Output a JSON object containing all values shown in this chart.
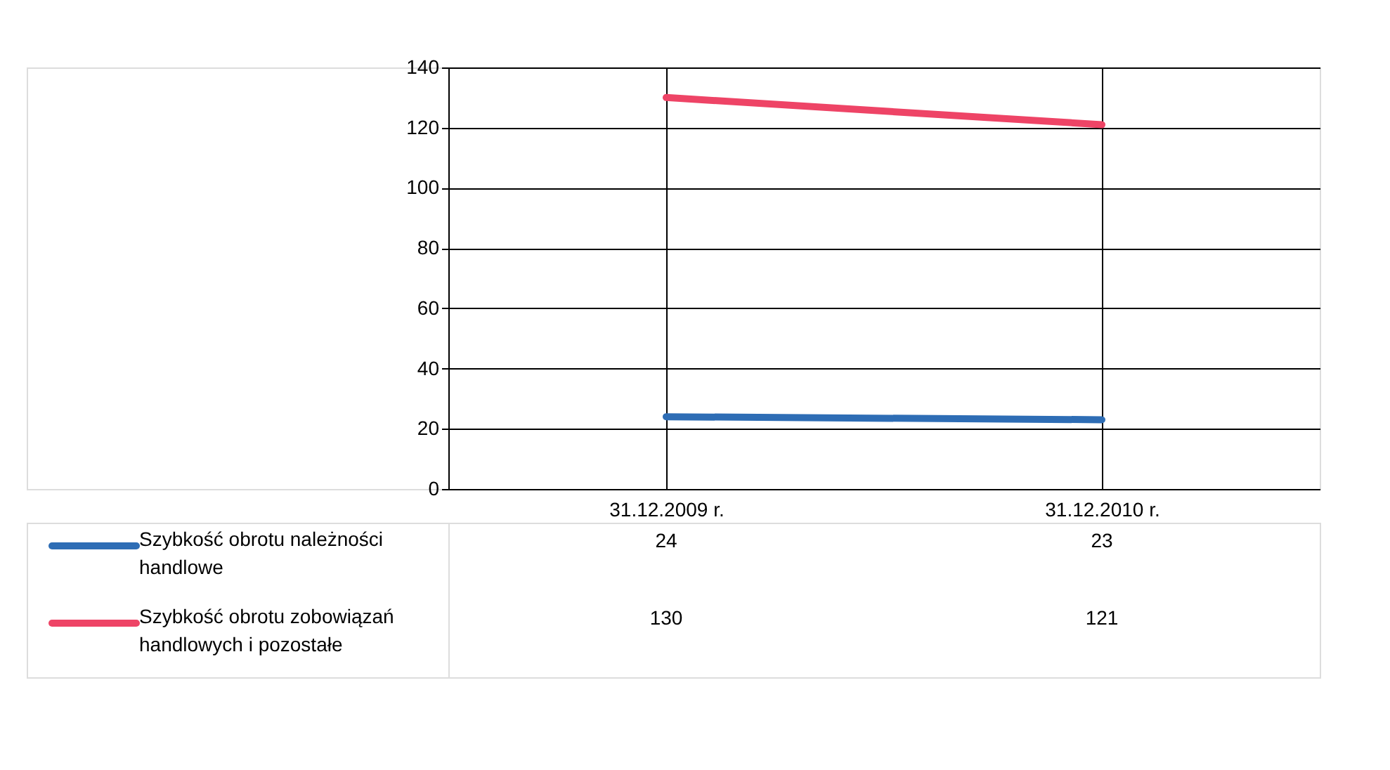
{
  "chart_data": {
    "type": "line",
    "categories": [
      "31.12.2009 r.",
      "31.12.2010 r."
    ],
    "series": [
      {
        "name": "Szybkość obrotu należności handlowe",
        "color": "#2e6db5",
        "values": [
          24,
          23
        ]
      },
      {
        "name": "Szybkość obrotu zobowiązań handlowych i pozostałe",
        "color": "#ee4466",
        "values": [
          130,
          121
        ]
      }
    ],
    "ylim": [
      0,
      140
    ],
    "yticks": [
      0,
      20,
      40,
      60,
      80,
      100,
      120,
      140
    ],
    "grid": true,
    "data_labels": true,
    "legend": "bottom left",
    "marker": "none"
  }
}
